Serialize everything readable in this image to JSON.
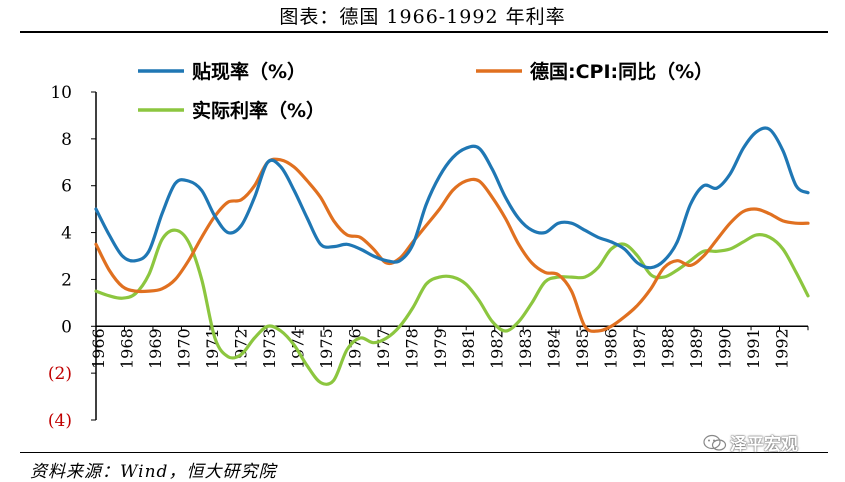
{
  "page": {
    "title": "图表：德国 1966-1992 年利率",
    "source": "资料来源：Wind，恒大研究院",
    "watermark": "泽平宏观"
  },
  "colors": {
    "discount": "#1f77b4",
    "cpi": "#e07020",
    "real": "#8cc63f",
    "negative_tick": "#c00000"
  },
  "chart_data": {
    "type": "line",
    "title": "",
    "xlabel": "",
    "ylabel": "",
    "ylim": [
      -4,
      10
    ],
    "yticks": [
      {
        "value": 10,
        "label": "10"
      },
      {
        "value": 8,
        "label": "8"
      },
      {
        "value": 6,
        "label": "6"
      },
      {
        "value": 4,
        "label": "4"
      },
      {
        "value": 2,
        "label": "2"
      },
      {
        "value": 0,
        "label": "0"
      },
      {
        "value": -2,
        "label": "(2)"
      },
      {
        "value": -4,
        "label": "(4)"
      }
    ],
    "x_range": [
      1966,
      1992.95
    ],
    "xtick_labels": [
      "1966",
      "1968",
      "1969",
      "1970",
      "1971",
      "1972",
      "1973",
      "1974",
      "1975",
      "1976",
      "1977",
      "1978",
      "1979",
      "1981",
      "1982",
      "1983",
      "1984",
      "1985",
      "1986",
      "1987",
      "1988",
      "1989",
      "1990",
      "1991",
      "1992"
    ],
    "legend": [
      {
        "name": "贴现率（%）",
        "series": 0
      },
      {
        "name": "德国:CPI:同比（%）",
        "series": 1
      },
      {
        "name": "实际利率（%）",
        "series": 2
      }
    ],
    "series": [
      {
        "name": "贴现率（%）",
        "color": "#1f77b4",
        "x": [
          1966,
          1966.5,
          1967,
          1967.5,
          1968,
          1968.5,
          1969,
          1969.5,
          1970,
          1970.5,
          1971,
          1971.5,
          1972,
          1972.5,
          1973,
          1973.5,
          1974,
          1974.5,
          1975,
          1975.5,
          1976,
          1976.5,
          1977,
          1977.5,
          1978,
          1978.5,
          1979,
          1979.5,
          1980,
          1980.5,
          1981,
          1981.5,
          1982,
          1982.5,
          1983,
          1983.5,
          1984,
          1984.5,
          1985,
          1985.5,
          1986,
          1986.5,
          1987,
          1987.5,
          1988,
          1988.5,
          1989,
          1989.5,
          1990,
          1990.5,
          1991,
          1991.5,
          1992,
          1992.5,
          1992.95
        ],
        "values": [
          5.0,
          3.9,
          3.0,
          2.8,
          3.2,
          4.8,
          6.1,
          6.2,
          5.8,
          4.7,
          4.0,
          4.3,
          5.5,
          7.0,
          6.8,
          5.8,
          4.6,
          3.5,
          3.4,
          3.5,
          3.3,
          3.0,
          2.8,
          2.8,
          3.5,
          5.2,
          6.4,
          7.2,
          7.6,
          7.6,
          6.7,
          5.5,
          4.6,
          4.1,
          4.0,
          4.4,
          4.4,
          4.1,
          3.8,
          3.6,
          3.3,
          2.7,
          2.5,
          2.8,
          3.6,
          5.2,
          6.0,
          5.9,
          6.5,
          7.6,
          8.3,
          8.4,
          7.5,
          6.0,
          5.7
        ]
      },
      {
        "name": "德国:CPI:同比（%）",
        "color": "#e07020",
        "x": [
          1966,
          1966.5,
          1967,
          1967.5,
          1968,
          1968.5,
          1969,
          1969.5,
          1970,
          1970.5,
          1971,
          1971.5,
          1972,
          1972.5,
          1973,
          1973.5,
          1974,
          1974.5,
          1975,
          1975.5,
          1976,
          1976.5,
          1977,
          1977.5,
          1978,
          1978.5,
          1979,
          1979.5,
          1980,
          1980.5,
          1981,
          1981.5,
          1982,
          1982.5,
          1983,
          1983.5,
          1984,
          1984.5,
          1985,
          1985.5,
          1986,
          1986.5,
          1987,
          1987.5,
          1988,
          1988.5,
          1989,
          1989.5,
          1990,
          1990.5,
          1991,
          1991.5,
          1992,
          1992.5,
          1992.95
        ],
        "values": [
          3.5,
          2.4,
          1.7,
          1.5,
          1.5,
          1.6,
          2.0,
          2.8,
          3.8,
          4.7,
          5.3,
          5.4,
          6.0,
          7.0,
          7.1,
          6.8,
          6.2,
          5.5,
          4.5,
          3.9,
          3.8,
          3.3,
          2.7,
          2.9,
          3.6,
          4.3,
          5.0,
          5.8,
          6.2,
          6.2,
          5.5,
          4.6,
          3.5,
          2.7,
          2.3,
          2.2,
          1.5,
          0.0,
          -0.2,
          0.0,
          0.4,
          0.9,
          1.6,
          2.5,
          2.8,
          2.6,
          3.0,
          3.7,
          4.4,
          4.9,
          5.0,
          4.8,
          4.5,
          4.4,
          4.4
        ]
      },
      {
        "name": "实际利率（%）",
        "color": "#8cc63f",
        "x": [
          1966,
          1966.5,
          1967,
          1967.5,
          1968,
          1968.5,
          1969,
          1969.5,
          1970,
          1970.5,
          1971,
          1971.5,
          1972,
          1972.5,
          1973,
          1973.5,
          1974,
          1974.5,
          1975,
          1975.5,
          1976,
          1976.5,
          1977,
          1977.5,
          1978,
          1978.5,
          1979,
          1979.5,
          1980,
          1980.5,
          1981,
          1981.5,
          1982,
          1982.5,
          1983,
          1983.5,
          1984,
          1984.5,
          1985,
          1985.5,
          1986,
          1986.5,
          1987,
          1987.5,
          1988,
          1988.5,
          1989,
          1989.5,
          1990,
          1990.5,
          1991,
          1991.5,
          1992,
          1992.5,
          1992.95
        ],
        "values": [
          1.5,
          1.3,
          1.2,
          1.4,
          2.2,
          3.7,
          4.1,
          3.6,
          2.0,
          -0.5,
          -1.3,
          -1.2,
          -0.5,
          0.0,
          -0.2,
          -0.8,
          -1.7,
          -2.4,
          -2.3,
          -1.0,
          -0.5,
          -0.7,
          -0.5,
          0.0,
          0.8,
          1.8,
          2.1,
          2.1,
          1.8,
          1.1,
          0.2,
          -0.2,
          0.2,
          1.0,
          1.9,
          2.1,
          2.1,
          2.1,
          2.5,
          3.3,
          3.5,
          3.0,
          2.2,
          2.1,
          2.4,
          2.8,
          3.2,
          3.2,
          3.3,
          3.6,
          3.9,
          3.8,
          3.3,
          2.3,
          1.3
        ]
      }
    ]
  }
}
